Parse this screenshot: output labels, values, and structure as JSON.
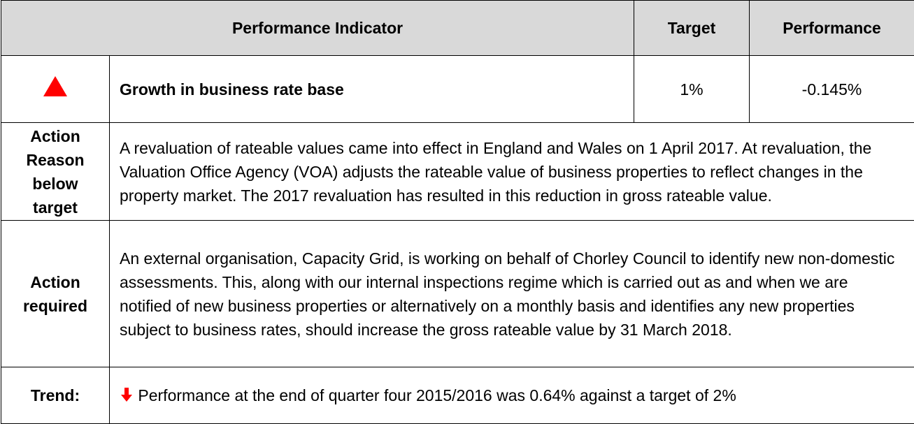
{
  "header": {
    "indicator": "Performance Indicator",
    "target": "Target",
    "performance": "Performance"
  },
  "indicator_row": {
    "name": "Growth in business rate base",
    "target": "1%",
    "performance": "-0.145%"
  },
  "rows": [
    {
      "label": [
        "Action",
        "Reason",
        "below",
        "target"
      ],
      "text": "A revaluation of rateable values came into effect in England and Wales on 1 April 2017. At revaluation, the Valuation Office Agency (VOA) adjusts the rateable value of business properties to reflect changes in the property market. The 2017 revaluation has resulted in this reduction in gross rateable value."
    },
    {
      "label": [
        "Action",
        "required"
      ],
      "text": "An external organisation, Capacity Grid, is working on behalf of Chorley Council to identify new non-domestic assessments. This, along with our internal inspections regime which is carried out as and when we are notified of new business properties or alternatively on a monthly basis and identifies any new properties subject to business rates, should increase the gross rateable value by 31 March 2018."
    },
    {
      "label": [
        "Trend:"
      ],
      "text": "Performance at the end of quarter four 2015/2016 was 0.64% against  a target of 2%"
    }
  ]
}
